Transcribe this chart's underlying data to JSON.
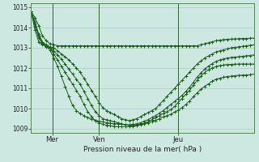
{
  "background_color": "#cce8e0",
  "grid_color": "#aacccc",
  "line_color": "#1a5c1a",
  "xlabel": "Pression niveau de la mer( hPa )",
  "ylim": [
    1008.8,
    1015.2
  ],
  "yticks": [
    1009,
    1010,
    1011,
    1012,
    1013,
    1014,
    1015
  ],
  "xtick_labels": [
    "Mer",
    "Ven",
    "Jeu"
  ],
  "vline_positions": [
    0.095,
    0.305,
    0.66
  ],
  "num_points": 60,
  "series": [
    [
      1014.8,
      1014.5,
      1014.1,
      1013.6,
      1013.35,
      1013.2,
      1013.15,
      1013.1,
      1013.1,
      1013.1,
      1013.1,
      1013.1,
      1013.1,
      1013.1,
      1013.1,
      1013.1,
      1013.1,
      1013.1,
      1013.1,
      1013.1,
      1013.1,
      1013.1,
      1013.1,
      1013.1,
      1013.1,
      1013.1,
      1013.1,
      1013.1,
      1013.1,
      1013.1,
      1013.1,
      1013.1,
      1013.1,
      1013.1,
      1013.1,
      1013.1,
      1013.1,
      1013.1,
      1013.1,
      1013.1,
      1013.1,
      1013.1,
      1013.1,
      1013.1,
      1013.1,
      1013.15,
      1013.2,
      1013.25,
      1013.3,
      1013.35,
      1013.38,
      1013.4,
      1013.42,
      1013.43,
      1013.44,
      1013.45,
      1013.46,
      1013.46,
      1013.47,
      1013.48
    ],
    [
      1014.8,
      1014.3,
      1013.7,
      1013.3,
      1013.15,
      1013.05,
      1013.0,
      1012.85,
      1012.7,
      1012.55,
      1012.4,
      1012.2,
      1012.0,
      1011.8,
      1011.5,
      1011.2,
      1010.9,
      1010.6,
      1010.3,
      1010.05,
      1009.9,
      1009.8,
      1009.7,
      1009.6,
      1009.5,
      1009.45,
      1009.4,
      1009.45,
      1009.5,
      1009.6,
      1009.7,
      1009.8,
      1009.9,
      1010.0,
      1010.2,
      1010.4,
      1010.6,
      1010.8,
      1011.0,
      1011.2,
      1011.4,
      1011.6,
      1011.8,
      1012.0,
      1012.2,
      1012.35,
      1012.5,
      1012.6,
      1012.7,
      1012.8,
      1012.85,
      1012.9,
      1012.95,
      1013.0,
      1013.02,
      1013.05,
      1013.07,
      1013.1,
      1013.12,
      1013.15
    ],
    [
      1014.8,
      1014.2,
      1013.6,
      1013.25,
      1013.1,
      1013.0,
      1012.85,
      1012.65,
      1012.45,
      1012.2,
      1011.95,
      1011.7,
      1011.45,
      1011.2,
      1010.85,
      1010.5,
      1010.15,
      1009.85,
      1009.65,
      1009.5,
      1009.45,
      1009.4,
      1009.35,
      1009.3,
      1009.25,
      1009.2,
      1009.2,
      1009.22,
      1009.25,
      1009.3,
      1009.38,
      1009.45,
      1009.55,
      1009.65,
      1009.78,
      1009.9,
      1010.05,
      1010.2,
      1010.35,
      1010.5,
      1010.65,
      1010.85,
      1011.05,
      1011.3,
      1011.55,
      1011.75,
      1011.95,
      1012.1,
      1012.22,
      1012.33,
      1012.4,
      1012.45,
      1012.5,
      1012.52,
      1012.54,
      1012.56,
      1012.58,
      1012.6,
      1012.62,
      1012.65
    ],
    [
      1014.8,
      1014.1,
      1013.5,
      1013.2,
      1013.1,
      1013.0,
      1012.7,
      1012.4,
      1012.1,
      1011.8,
      1011.5,
      1011.2,
      1010.9,
      1010.6,
      1010.2,
      1009.85,
      1009.6,
      1009.4,
      1009.3,
      1009.22,
      1009.18,
      1009.15,
      1009.12,
      1009.1,
      1009.1,
      1009.1,
      1009.1,
      1009.12,
      1009.15,
      1009.2,
      1009.28,
      1009.35,
      1009.45,
      1009.55,
      1009.65,
      1009.75,
      1009.85,
      1009.95,
      1010.1,
      1010.3,
      1010.5,
      1010.7,
      1010.9,
      1011.15,
      1011.4,
      1011.6,
      1011.78,
      1011.92,
      1012.0,
      1012.08,
      1012.12,
      1012.15,
      1012.17,
      1012.18,
      1012.19,
      1012.2,
      1012.2,
      1012.2,
      1012.2,
      1012.2
    ],
    [
      1014.8,
      1013.9,
      1013.3,
      1013.15,
      1013.05,
      1012.9,
      1012.5,
      1012.1,
      1011.6,
      1011.1,
      1010.6,
      1010.15,
      1009.9,
      1009.75,
      1009.65,
      1009.55,
      1009.48,
      1009.42,
      1009.38,
      1009.34,
      1009.3,
      1009.28,
      1009.26,
      1009.24,
      1009.22,
      1009.2,
      1009.18,
      1009.18,
      1009.2,
      1009.22,
      1009.26,
      1009.3,
      1009.35,
      1009.42,
      1009.5,
      1009.58,
      1009.65,
      1009.72,
      1009.82,
      1009.92,
      1010.05,
      1010.2,
      1010.38,
      1010.58,
      1010.78,
      1010.95,
      1011.1,
      1011.22,
      1011.35,
      1011.45,
      1011.5,
      1011.55,
      1011.58,
      1011.6,
      1011.62,
      1011.64,
      1011.65,
      1011.66,
      1011.67,
      1011.7
    ]
  ]
}
